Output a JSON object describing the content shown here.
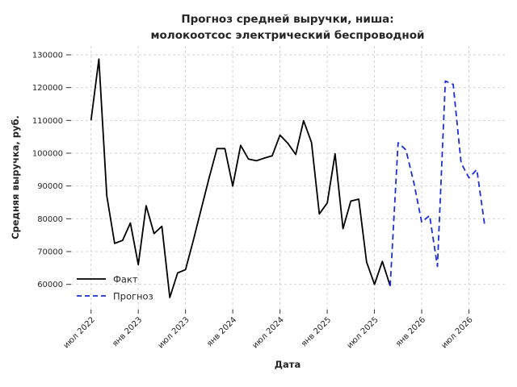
{
  "title": {
    "line1": "Прогноз средней выручки, ниша:",
    "line2": "молокоотсос электрический беспроводной"
  },
  "axes": {
    "x_label": "Дата",
    "y_label": "Средняя выручка, руб.",
    "y_ticks": [
      60000,
      70000,
      80000,
      90000,
      100000,
      110000,
      120000,
      130000
    ],
    "x_ticks": [
      {
        "label": "июл 2022",
        "month": "2022-07"
      },
      {
        "label": "янв 2023",
        "month": "2023-01"
      },
      {
        "label": "июл 2023",
        "month": "2023-07"
      },
      {
        "label": "янв 2024",
        "month": "2024-01"
      },
      {
        "label": "июл 2024",
        "month": "2024-07"
      },
      {
        "label": "янв 2025",
        "month": "2025-01"
      },
      {
        "label": "июл 2025",
        "month": "2025-07"
      },
      {
        "label": "янв 2026",
        "month": "2026-01"
      },
      {
        "label": "июл 2026",
        "month": "2026-07"
      }
    ]
  },
  "legend": {
    "items": [
      {
        "label": "Факт",
        "color": "#000000",
        "dash": "solid"
      },
      {
        "label": "Прогноз",
        "color": "#1a2fd8",
        "dash": "dashed"
      }
    ]
  },
  "chart_data": {
    "type": "line",
    "title": "Прогноз средней выручки, ниша: молокоотсос электрический беспроводной",
    "xlabel": "Дата",
    "ylabel": "Средняя выручка, руб.",
    "ylim": [
      52350,
      132650
    ],
    "grid": true,
    "grid_style": "dashed",
    "legend_position": "lower-left",
    "series": [
      {
        "name": "Факт",
        "color": "#000000",
        "style": "solid",
        "months": [
          "2022-07",
          "2022-08",
          "2022-09",
          "2022-10",
          "2022-11",
          "2022-12",
          "2023-01",
          "2023-02",
          "2023-03",
          "2023-04",
          "2023-05",
          "2023-06",
          "2023-07",
          "2023-08",
          "2023-09",
          "2023-10",
          "2023-11",
          "2023-12",
          "2024-01",
          "2024-02",
          "2024-03",
          "2024-04",
          "2024-05",
          "2024-06",
          "2024-07",
          "2024-08",
          "2024-09",
          "2024-10",
          "2024-11",
          "2024-12",
          "2025-01",
          "2025-02",
          "2025-03",
          "2025-04",
          "2025-05",
          "2025-06",
          "2025-07",
          "2025-08",
          "2025-09"
        ],
        "values": [
          110000,
          128700,
          87000,
          72500,
          73400,
          78700,
          66000,
          84000,
          75500,
          77700,
          56000,
          63500,
          64500,
          73500,
          83000,
          92500,
          101400,
          101400,
          90000,
          102400,
          98200,
          97700,
          98500,
          99200,
          105500,
          103000,
          99600,
          109900,
          103300,
          81500,
          84800,
          99800,
          77000,
          85400,
          86000,
          66800,
          60000,
          67000,
          59500
        ]
      },
      {
        "name": "Прогноз",
        "color": "#1a2fd8",
        "style": "dashed",
        "months": [
          "2025-09",
          "2025-10",
          "2025-11",
          "2025-12",
          "2026-01",
          "2026-02",
          "2026-03",
          "2026-04",
          "2026-05",
          "2026-06",
          "2026-07",
          "2026-08",
          "2026-09"
        ],
        "values": [
          59500,
          103200,
          101000,
          91000,
          79000,
          81000,
          65500,
          122000,
          121000,
          97000,
          92500,
          95000,
          78000
        ]
      }
    ]
  }
}
